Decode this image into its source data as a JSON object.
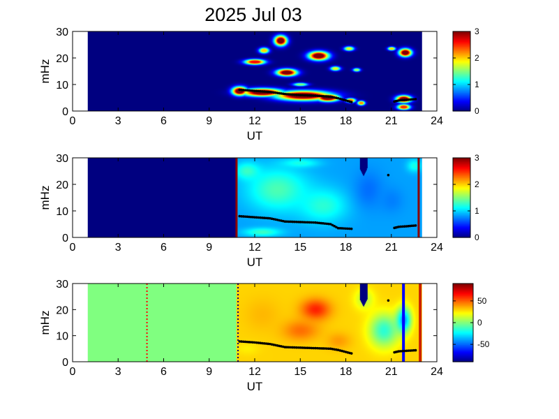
{
  "title": "2025 Jul 03",
  "chart_data": [
    {
      "type": "heatmap",
      "panel": "top",
      "xlabel": "UT",
      "ylabel": "mHz",
      "xlim": [
        0,
        24
      ],
      "ylim": [
        0,
        30
      ],
      "xticks": [
        0,
        3,
        6,
        9,
        12,
        15,
        18,
        21,
        24
      ],
      "yticks": [
        0,
        10,
        20,
        30
      ],
      "data_x_range": [
        1,
        23
      ],
      "colorbar": {
        "min": 0,
        "max": 3,
        "ticks": [
          0,
          1,
          2,
          3
        ],
        "colormap": "jet"
      },
      "background_value": 0,
      "blobs": [
        {
          "x": 11.0,
          "y": 7.5,
          "rx": 0.6,
          "ry": 2.0,
          "v": 3
        },
        {
          "x": 12.5,
          "y": 7.0,
          "rx": 1.6,
          "ry": 1.8,
          "v": 3
        },
        {
          "x": 15.2,
          "y": 5.8,
          "rx": 2.2,
          "ry": 2.2,
          "v": 3
        },
        {
          "x": 16.8,
          "y": 5.0,
          "rx": 0.9,
          "ry": 1.7,
          "v": 3
        },
        {
          "x": 18.3,
          "y": 4.0,
          "rx": 0.4,
          "ry": 1.0,
          "v": 2.2
        },
        {
          "x": 19.0,
          "y": 3.0,
          "rx": 0.3,
          "ry": 1.0,
          "v": 2.2
        },
        {
          "x": 21.8,
          "y": 4.5,
          "rx": 0.6,
          "ry": 1.6,
          "v": 3
        },
        {
          "x": 21.8,
          "y": 1.5,
          "rx": 0.5,
          "ry": 1.2,
          "v": 2.5
        },
        {
          "x": 13.7,
          "y": 26.5,
          "rx": 0.5,
          "ry": 2.3,
          "v": 3
        },
        {
          "x": 16.2,
          "y": 20.8,
          "rx": 0.8,
          "ry": 2.0,
          "v": 3
        },
        {
          "x": 14.1,
          "y": 14.5,
          "rx": 0.8,
          "ry": 1.6,
          "v": 3
        },
        {
          "x": 12.0,
          "y": 18.5,
          "rx": 0.8,
          "ry": 1.2,
          "v": 2.6
        },
        {
          "x": 21.9,
          "y": 22.0,
          "rx": 0.5,
          "ry": 1.8,
          "v": 3
        },
        {
          "x": 12.6,
          "y": 22.8,
          "rx": 0.4,
          "ry": 1.3,
          "v": 2.0
        },
        {
          "x": 17.3,
          "y": 16.0,
          "rx": 0.4,
          "ry": 1.0,
          "v": 1.8
        },
        {
          "x": 18.2,
          "y": 23.5,
          "rx": 0.4,
          "ry": 1.0,
          "v": 1.8
        },
        {
          "x": 15.0,
          "y": 10.0,
          "rx": 0.6,
          "ry": 0.8,
          "v": 1.5
        },
        {
          "x": 21.0,
          "y": 23.5,
          "rx": 0.3,
          "ry": 0.8,
          "v": 2.0
        },
        {
          "x": 18.7,
          "y": 15.5,
          "rx": 0.3,
          "ry": 0.8,
          "v": 1.6
        }
      ],
      "ridge": [
        [
          11.0,
          8.0
        ],
        [
          12.0,
          7.6
        ],
        [
          13.0,
          7.2
        ],
        [
          14.0,
          6.4
        ],
        [
          15.0,
          6.0
        ],
        [
          16.0,
          5.8
        ],
        [
          17.0,
          5.4
        ],
        [
          17.5,
          4.8
        ],
        [
          18.5,
          3.2
        ],
        [
          21.2,
          3.6
        ],
        [
          21.5,
          4.0
        ],
        [
          22.0,
          4.2
        ],
        [
          22.6,
          4.5
        ]
      ]
    },
    {
      "type": "heatmap",
      "panel": "middle",
      "xlabel": "UT",
      "ylabel": "mHz",
      "xlim": [
        0,
        24
      ],
      "ylim": [
        0,
        30
      ],
      "xticks": [
        0,
        3,
        6,
        9,
        12,
        15,
        18,
        21,
        24
      ],
      "yticks": [
        0,
        10,
        20,
        30
      ],
      "data_x_range": [
        1,
        23
      ],
      "active_from": 10.8,
      "colorbar": {
        "min": 0,
        "max": 3,
        "ticks": [
          0,
          1,
          2,
          3
        ],
        "colormap": "jet"
      },
      "background_value": 0.85,
      "blobs": [
        {
          "x": 13.5,
          "y": 18.0,
          "rx": 2.5,
          "ry": 10.0,
          "v": 1.35
        },
        {
          "x": 16.5,
          "y": 12.0,
          "rx": 2.0,
          "ry": 8.0,
          "v": 1.25
        },
        {
          "x": 19.5,
          "y": 18.0,
          "rx": 1.2,
          "ry": 9.0,
          "v": 0.7
        },
        {
          "x": 11.5,
          "y": 25.0,
          "rx": 1.0,
          "ry": 4.0,
          "v": 1.3
        },
        {
          "x": 21.0,
          "y": 14.0,
          "rx": 1.0,
          "ry": 6.0,
          "v": 0.75
        },
        {
          "x": 12.5,
          "y": 2.0,
          "rx": 1.5,
          "ry": 2.0,
          "v": 1.3
        },
        {
          "x": 22.5,
          "y": 27.0,
          "rx": 0.6,
          "ry": 3.0,
          "v": 1.2
        },
        {
          "x": 15.0,
          "y": 28.0,
          "rx": 1.5,
          "ry": 2.0,
          "v": 1.2
        }
      ],
      "notch": {
        "x": [
          18.9,
          19.4
        ],
        "y": [
          26,
          30
        ]
      },
      "edges_red": [
        10.8,
        22.8
      ],
      "ridge": [
        [
          11.0,
          8.0
        ],
        [
          12.0,
          7.6
        ],
        [
          13.0,
          7.2
        ],
        [
          14.0,
          6.0
        ],
        [
          15.0,
          5.8
        ],
        [
          16.0,
          5.6
        ],
        [
          17.0,
          5.0
        ],
        [
          17.5,
          3.5
        ],
        [
          18.5,
          3.2
        ],
        [
          21.2,
          3.6
        ],
        [
          21.5,
          4.0
        ],
        [
          22.0,
          4.2
        ],
        [
          22.6,
          4.5
        ]
      ],
      "extra_points": [
        [
          20.8,
          23.5
        ]
      ]
    },
    {
      "type": "heatmap",
      "panel": "bottom",
      "xlabel": "UT",
      "ylabel": "mHz",
      "xlim": [
        0,
        24
      ],
      "ylim": [
        0,
        30
      ],
      "xticks": [
        0,
        3,
        6,
        9,
        12,
        15,
        18,
        21,
        24
      ],
      "yticks": [
        0,
        10,
        20,
        30
      ],
      "data_x_range": [
        1,
        23
      ],
      "active_from": 10.8,
      "colorbar": {
        "min": -90,
        "max": 90,
        "ticks": [
          -50,
          0,
          50
        ],
        "colormap": "jet"
      },
      "background_value": 30,
      "blobs": [
        {
          "x": 16.0,
          "y": 20.0,
          "rx": 1.2,
          "ry": 5.0,
          "v": 62
        },
        {
          "x": 15.0,
          "y": 12.0,
          "rx": 1.5,
          "ry": 5.0,
          "v": 48
        },
        {
          "x": 12.5,
          "y": 18.0,
          "rx": 1.5,
          "ry": 8.0,
          "v": 35
        },
        {
          "x": 20.5,
          "y": 12.0,
          "rx": 1.2,
          "ry": 8.0,
          "v": -15
        },
        {
          "x": 21.8,
          "y": 16.0,
          "rx": 0.6,
          "ry": 6.0,
          "v": -40
        },
        {
          "x": 19.2,
          "y": 24.0,
          "rx": 0.8,
          "ry": 5.0,
          "v": 10
        },
        {
          "x": 17.5,
          "y": 8.0,
          "rx": 1.0,
          "ry": 4.0,
          "v": 40
        },
        {
          "x": 11.5,
          "y": 5.0,
          "rx": 1.0,
          "ry": 3.0,
          "v": 25
        }
      ],
      "left_fill_value": 0,
      "notch": {
        "x": [
          18.9,
          19.4
        ],
        "y": [
          24,
          30
        ]
      },
      "dotted_lines": [
        {
          "x": 4.9,
          "color": "#ff0000"
        },
        {
          "x": 10.9,
          "color": "#000080"
        }
      ],
      "solid_lines": [
        {
          "x": 21.8,
          "color": "#0000ff"
        },
        {
          "x": 22.9,
          "color": "#cc2200"
        }
      ],
      "ridge": [
        [
          11.0,
          7.8
        ],
        [
          12.0,
          7.4
        ],
        [
          13.0,
          6.8
        ],
        [
          14.0,
          5.6
        ],
        [
          15.0,
          5.4
        ],
        [
          16.0,
          5.2
        ],
        [
          17.0,
          5.0
        ],
        [
          17.5,
          4.5
        ],
        [
          18.5,
          3.0
        ],
        [
          21.2,
          3.6
        ],
        [
          21.5,
          4.0
        ],
        [
          22.0,
          4.2
        ],
        [
          22.6,
          4.4
        ]
      ],
      "extra_points": [
        [
          20.8,
          23.5
        ]
      ]
    }
  ]
}
